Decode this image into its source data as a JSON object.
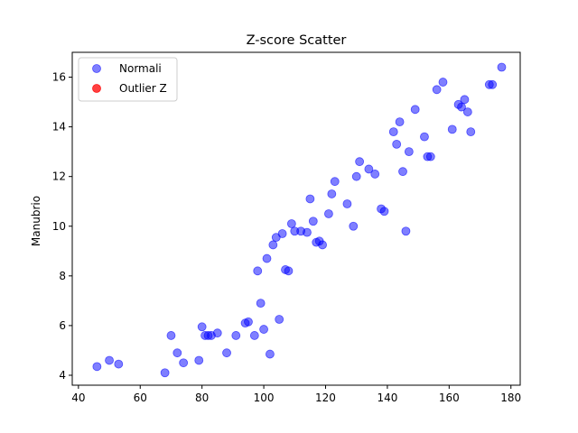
{
  "chart_data": {
    "type": "scatter",
    "title": "Z-score Scatter",
    "xlabel": "",
    "ylabel": "Manubrio",
    "xlim": [
      38,
      183
    ],
    "ylim": [
      3.6,
      17.0
    ],
    "xticks": [
      40,
      60,
      80,
      100,
      120,
      140,
      160,
      180
    ],
    "yticks": [
      4,
      6,
      8,
      10,
      12,
      14,
      16
    ],
    "grid": false,
    "legend_position": "top-left",
    "series": [
      {
        "name": "Normali",
        "color": "#0000ff",
        "opacity": 0.5,
        "points": [
          [
            46,
            4.35
          ],
          [
            50,
            4.6
          ],
          [
            53,
            4.45
          ],
          [
            68,
            4.1
          ],
          [
            70,
            5.6
          ],
          [
            72,
            4.9
          ],
          [
            74,
            4.5
          ],
          [
            79,
            4.6
          ],
          [
            80,
            5.95
          ],
          [
            81,
            5.6
          ],
          [
            82,
            5.6
          ],
          [
            83,
            5.6
          ],
          [
            85,
            5.7
          ],
          [
            88,
            4.9
          ],
          [
            91,
            5.6
          ],
          [
            94,
            6.1
          ],
          [
            95,
            6.15
          ],
          [
            97,
            5.6
          ],
          [
            98,
            8.2
          ],
          [
            99,
            6.9
          ],
          [
            100,
            5.85
          ],
          [
            101,
            8.7
          ],
          [
            102,
            4.85
          ],
          [
            103,
            9.25
          ],
          [
            104,
            9.55
          ],
          [
            105,
            6.25
          ],
          [
            106,
            9.7
          ],
          [
            107,
            8.25
          ],
          [
            108,
            8.2
          ],
          [
            109,
            10.1
          ],
          [
            110,
            9.8
          ],
          [
            112,
            9.8
          ],
          [
            114,
            9.75
          ],
          [
            115,
            11.1
          ],
          [
            116,
            10.2
          ],
          [
            117,
            9.35
          ],
          [
            118,
            9.4
          ],
          [
            119,
            9.25
          ],
          [
            121,
            10.5
          ],
          [
            122,
            11.3
          ],
          [
            123,
            11.8
          ],
          [
            127,
            10.9
          ],
          [
            129,
            10.0
          ],
          [
            130,
            12.0
          ],
          [
            131,
            12.6
          ],
          [
            134,
            12.3
          ],
          [
            136,
            12.1
          ],
          [
            138,
            10.7
          ],
          [
            139,
            10.6
          ],
          [
            142,
            13.8
          ],
          [
            143,
            13.3
          ],
          [
            144,
            14.2
          ],
          [
            145,
            12.2
          ],
          [
            146,
            9.8
          ],
          [
            147,
            13.0
          ],
          [
            149,
            14.7
          ],
          [
            152,
            13.6
          ],
          [
            153,
            12.8
          ],
          [
            154,
            12.8
          ],
          [
            156,
            15.5
          ],
          [
            158,
            15.8
          ],
          [
            161,
            13.9
          ],
          [
            163,
            14.9
          ],
          [
            164,
            14.8
          ],
          [
            165,
            15.1
          ],
          [
            166,
            14.6
          ],
          [
            167,
            13.8
          ],
          [
            173,
            15.7
          ],
          [
            174,
            15.7
          ],
          [
            177,
            16.4
          ]
        ]
      },
      {
        "name": "Outlier Z",
        "color": "#ff0000",
        "opacity": 0.75,
        "points": []
      }
    ]
  }
}
